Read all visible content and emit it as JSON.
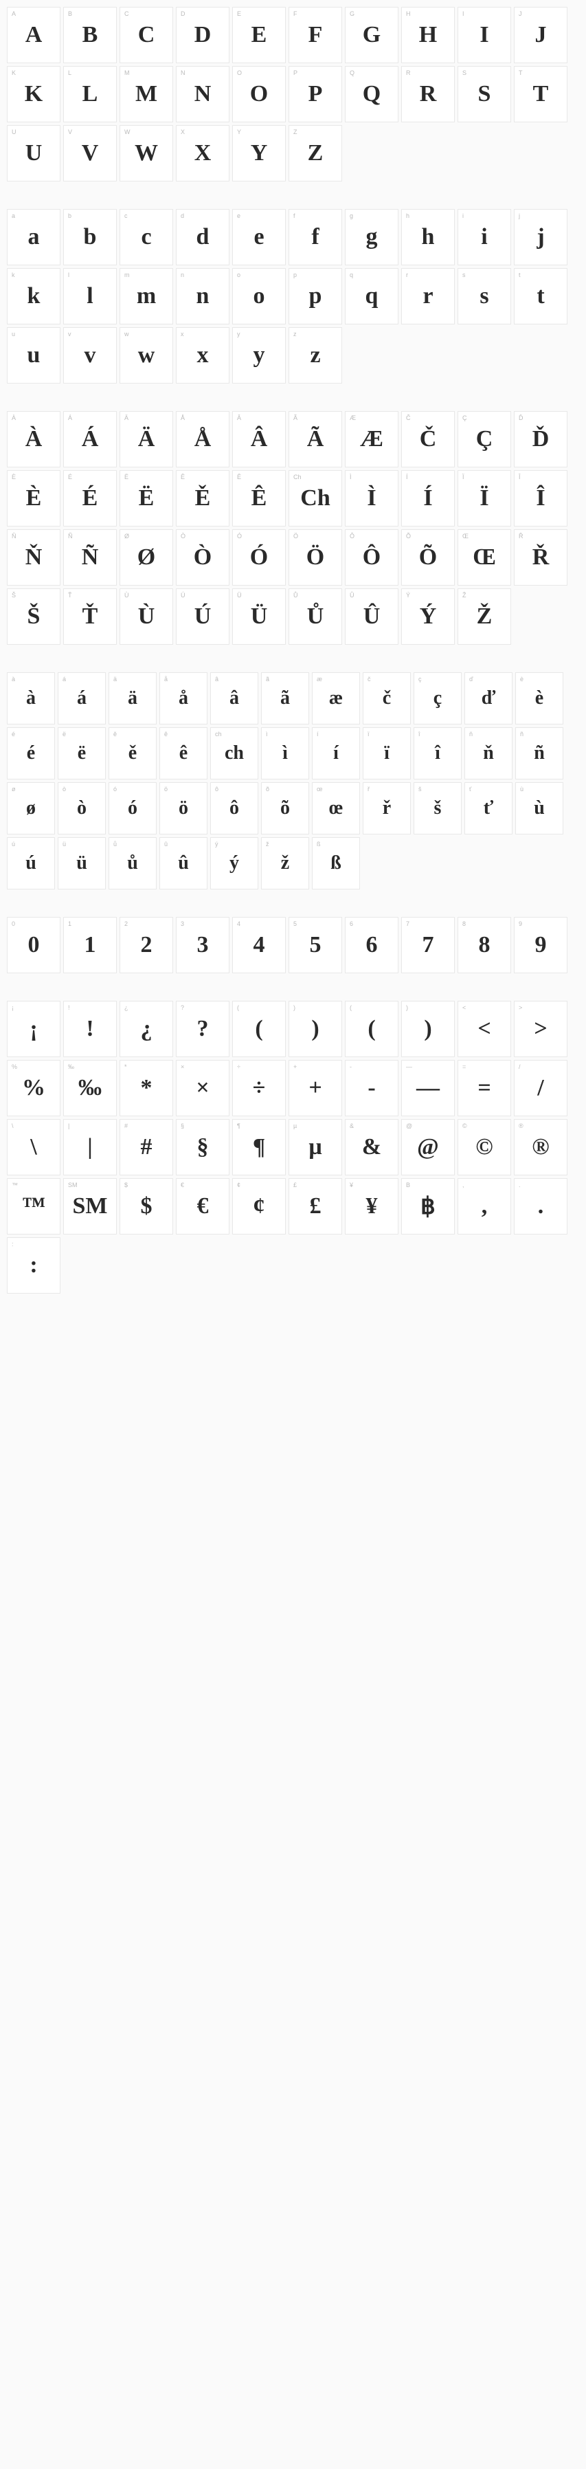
{
  "sections": [
    {
      "name": "uppercase",
      "cellClass": "cell",
      "glyphClass": "glyph",
      "cells": [
        {
          "label": "A",
          "glyph": "A"
        },
        {
          "label": "B",
          "glyph": "B"
        },
        {
          "label": "C",
          "glyph": "C"
        },
        {
          "label": "D",
          "glyph": "D"
        },
        {
          "label": "E",
          "glyph": "E"
        },
        {
          "label": "F",
          "glyph": "F"
        },
        {
          "label": "G",
          "glyph": "G"
        },
        {
          "label": "H",
          "glyph": "H"
        },
        {
          "label": "I",
          "glyph": "I"
        },
        {
          "label": "J",
          "glyph": "J"
        },
        {
          "label": "K",
          "glyph": "K"
        },
        {
          "label": "L",
          "glyph": "L"
        },
        {
          "label": "M",
          "glyph": "M"
        },
        {
          "label": "N",
          "glyph": "N"
        },
        {
          "label": "O",
          "glyph": "O"
        },
        {
          "label": "P",
          "glyph": "P"
        },
        {
          "label": "Q",
          "glyph": "Q"
        },
        {
          "label": "R",
          "glyph": "R"
        },
        {
          "label": "S",
          "glyph": "S"
        },
        {
          "label": "T",
          "glyph": "T"
        },
        {
          "label": "U",
          "glyph": "U"
        },
        {
          "label": "V",
          "glyph": "V"
        },
        {
          "label": "W",
          "glyph": "W"
        },
        {
          "label": "X",
          "glyph": "X"
        },
        {
          "label": "Y",
          "glyph": "Y"
        },
        {
          "label": "Z",
          "glyph": "Z"
        }
      ]
    },
    {
      "name": "lowercase",
      "cellClass": "cell",
      "glyphClass": "glyph",
      "cells": [
        {
          "label": "a",
          "glyph": "a"
        },
        {
          "label": "b",
          "glyph": "b"
        },
        {
          "label": "c",
          "glyph": "c"
        },
        {
          "label": "d",
          "glyph": "d"
        },
        {
          "label": "e",
          "glyph": "e"
        },
        {
          "label": "f",
          "glyph": "f"
        },
        {
          "label": "g",
          "glyph": "g"
        },
        {
          "label": "h",
          "glyph": "h"
        },
        {
          "label": "i",
          "glyph": "i"
        },
        {
          "label": "j",
          "glyph": "j"
        },
        {
          "label": "k",
          "glyph": "k"
        },
        {
          "label": "l",
          "glyph": "l"
        },
        {
          "label": "m",
          "glyph": "m"
        },
        {
          "label": "n",
          "glyph": "n"
        },
        {
          "label": "o",
          "glyph": "o"
        },
        {
          "label": "p",
          "glyph": "p"
        },
        {
          "label": "q",
          "glyph": "q"
        },
        {
          "label": "r",
          "glyph": "r"
        },
        {
          "label": "s",
          "glyph": "s"
        },
        {
          "label": "t",
          "glyph": "t"
        },
        {
          "label": "u",
          "glyph": "u"
        },
        {
          "label": "v",
          "glyph": "v"
        },
        {
          "label": "w",
          "glyph": "w"
        },
        {
          "label": "x",
          "glyph": "x"
        },
        {
          "label": "y",
          "glyph": "y"
        },
        {
          "label": "z",
          "glyph": "z"
        }
      ]
    },
    {
      "name": "accented-uppercase",
      "cellClass": "cell",
      "glyphClass": "glyph",
      "cells": [
        {
          "label": "À",
          "glyph": "À"
        },
        {
          "label": "Á",
          "glyph": "Á"
        },
        {
          "label": "Ä",
          "glyph": "Ä"
        },
        {
          "label": "Å",
          "glyph": "Å"
        },
        {
          "label": "Â",
          "glyph": "Â"
        },
        {
          "label": "Ã",
          "glyph": "Ã"
        },
        {
          "label": "Æ",
          "glyph": "Æ"
        },
        {
          "label": "Č",
          "glyph": "Č"
        },
        {
          "label": "Ç",
          "glyph": "Ç"
        },
        {
          "label": "Ď",
          "glyph": "Ď"
        },
        {
          "label": "È",
          "glyph": "È"
        },
        {
          "label": "É",
          "glyph": "É"
        },
        {
          "label": "Ë",
          "glyph": "Ë"
        },
        {
          "label": "Ě",
          "glyph": "Ě"
        },
        {
          "label": "Ê",
          "glyph": "Ê"
        },
        {
          "label": "Ch",
          "glyph": "Ch"
        },
        {
          "label": "Ì",
          "glyph": "Ì"
        },
        {
          "label": "Í",
          "glyph": "Í"
        },
        {
          "label": "Ï",
          "glyph": "Ï"
        },
        {
          "label": "Î",
          "glyph": "Î"
        },
        {
          "label": "Ň",
          "glyph": "Ň"
        },
        {
          "label": "Ñ",
          "glyph": "Ñ"
        },
        {
          "label": "Ø",
          "glyph": "Ø"
        },
        {
          "label": "Ò",
          "glyph": "Ò"
        },
        {
          "label": "Ó",
          "glyph": "Ó"
        },
        {
          "label": "Ö",
          "glyph": "Ö"
        },
        {
          "label": "Ô",
          "glyph": "Ô"
        },
        {
          "label": "Õ",
          "glyph": "Õ"
        },
        {
          "label": "Œ",
          "glyph": "Œ"
        },
        {
          "label": "Ř",
          "glyph": "Ř"
        },
        {
          "label": "Š",
          "glyph": "Š"
        },
        {
          "label": "Ť",
          "glyph": "Ť"
        },
        {
          "label": "Ù",
          "glyph": "Ù"
        },
        {
          "label": "Ú",
          "glyph": "Ú"
        },
        {
          "label": "Ü",
          "glyph": "Ü"
        },
        {
          "label": "Ů",
          "glyph": "Ů"
        },
        {
          "label": "Û",
          "glyph": "Û"
        },
        {
          "label": "Ý",
          "glyph": "Ý"
        },
        {
          "label": "Ž",
          "glyph": "Ž"
        }
      ]
    },
    {
      "name": "accented-lowercase",
      "cellClass": "cell cell-small",
      "glyphClass": "glyph glyph-small",
      "cells": [
        {
          "label": "à",
          "glyph": "à"
        },
        {
          "label": "á",
          "glyph": "á"
        },
        {
          "label": "ä",
          "glyph": "ä"
        },
        {
          "label": "å",
          "glyph": "å"
        },
        {
          "label": "â",
          "glyph": "â"
        },
        {
          "label": "ã",
          "glyph": "ã"
        },
        {
          "label": "æ",
          "glyph": "æ"
        },
        {
          "label": "č",
          "glyph": "č"
        },
        {
          "label": "ç",
          "glyph": "ç"
        },
        {
          "label": "ď",
          "glyph": "ď"
        },
        {
          "label": "è",
          "glyph": "è"
        },
        {
          "label": "é",
          "glyph": "é"
        },
        {
          "label": "ë",
          "glyph": "ë"
        },
        {
          "label": "ě",
          "glyph": "ě"
        },
        {
          "label": "ê",
          "glyph": "ê"
        },
        {
          "label": "ch",
          "glyph": "ch"
        },
        {
          "label": "ì",
          "glyph": "ì"
        },
        {
          "label": "í",
          "glyph": "í"
        },
        {
          "label": "ï",
          "glyph": "ï"
        },
        {
          "label": "î",
          "glyph": "î"
        },
        {
          "label": "ň",
          "glyph": "ň"
        },
        {
          "label": "ñ",
          "glyph": "ñ"
        },
        {
          "label": "ø",
          "glyph": "ø"
        },
        {
          "label": "ò",
          "glyph": "ò"
        },
        {
          "label": "ó",
          "glyph": "ó"
        },
        {
          "label": "ö",
          "glyph": "ö"
        },
        {
          "label": "ô",
          "glyph": "ô"
        },
        {
          "label": "õ",
          "glyph": "õ"
        },
        {
          "label": "œ",
          "glyph": "œ"
        },
        {
          "label": "ř",
          "glyph": "ř"
        },
        {
          "label": "š",
          "glyph": "š"
        },
        {
          "label": "ť",
          "glyph": "ť"
        },
        {
          "label": "ù",
          "glyph": "ù"
        },
        {
          "label": "ú",
          "glyph": "ú"
        },
        {
          "label": "ü",
          "glyph": "ü"
        },
        {
          "label": "ů",
          "glyph": "ů"
        },
        {
          "label": "û",
          "glyph": "û"
        },
        {
          "label": "ý",
          "glyph": "ý"
        },
        {
          "label": "ž",
          "glyph": "ž"
        },
        {
          "label": "ß",
          "glyph": "ß"
        }
      ]
    },
    {
      "name": "numbers",
      "cellClass": "cell",
      "glyphClass": "glyph",
      "cells": [
        {
          "label": "0",
          "glyph": "0"
        },
        {
          "label": "1",
          "glyph": "1"
        },
        {
          "label": "2",
          "glyph": "2"
        },
        {
          "label": "3",
          "glyph": "3"
        },
        {
          "label": "4",
          "glyph": "4"
        },
        {
          "label": "5",
          "glyph": "5"
        },
        {
          "label": "6",
          "glyph": "6"
        },
        {
          "label": "7",
          "glyph": "7"
        },
        {
          "label": "8",
          "glyph": "8"
        },
        {
          "label": "9",
          "glyph": "9"
        }
      ]
    },
    {
      "name": "symbols",
      "cellClass": "cell",
      "glyphClass": "glyph",
      "cells": [
        {
          "label": "¡",
          "glyph": "¡"
        },
        {
          "label": "!",
          "glyph": "!"
        },
        {
          "label": "¿",
          "glyph": "¿"
        },
        {
          "label": "?",
          "glyph": "?"
        },
        {
          "label": "(",
          "glyph": "("
        },
        {
          "label": ")",
          "glyph": ")"
        },
        {
          "label": "(",
          "glyph": "("
        },
        {
          "label": ")",
          "glyph": ")"
        },
        {
          "label": "<",
          "glyph": "<"
        },
        {
          "label": ">",
          "glyph": ">"
        },
        {
          "label": "%",
          "glyph": "%"
        },
        {
          "label": "‰",
          "glyph": "‰"
        },
        {
          "label": "*",
          "glyph": "*"
        },
        {
          "label": "×",
          "glyph": "×"
        },
        {
          "label": "÷",
          "glyph": "÷"
        },
        {
          "label": "+",
          "glyph": "+"
        },
        {
          "label": "-",
          "glyph": "-"
        },
        {
          "label": "—",
          "glyph": "—"
        },
        {
          "label": "=",
          "glyph": "="
        },
        {
          "label": "/",
          "glyph": "/"
        },
        {
          "label": "\\",
          "glyph": "\\"
        },
        {
          "label": "|",
          "glyph": "|"
        },
        {
          "label": "#",
          "glyph": "#"
        },
        {
          "label": "§",
          "glyph": "§"
        },
        {
          "label": "¶",
          "glyph": "¶"
        },
        {
          "label": "µ",
          "glyph": "µ"
        },
        {
          "label": "&",
          "glyph": "&"
        },
        {
          "label": "@",
          "glyph": "@"
        },
        {
          "label": "©",
          "glyph": "©"
        },
        {
          "label": "®",
          "glyph": "®"
        },
        {
          "label": "™",
          "glyph": "™"
        },
        {
          "label": "SM",
          "glyph": "SM"
        },
        {
          "label": "$",
          "glyph": "$"
        },
        {
          "label": "€",
          "glyph": "€"
        },
        {
          "label": "¢",
          "glyph": "¢"
        },
        {
          "label": "£",
          "glyph": "£"
        },
        {
          "label": "¥",
          "glyph": "¥"
        },
        {
          "label": "B",
          "glyph": "฿"
        },
        {
          "label": ",",
          "glyph": ","
        },
        {
          "label": ".",
          "glyph": "."
        },
        {
          "label": ":",
          "glyph": ":"
        }
      ]
    }
  ]
}
